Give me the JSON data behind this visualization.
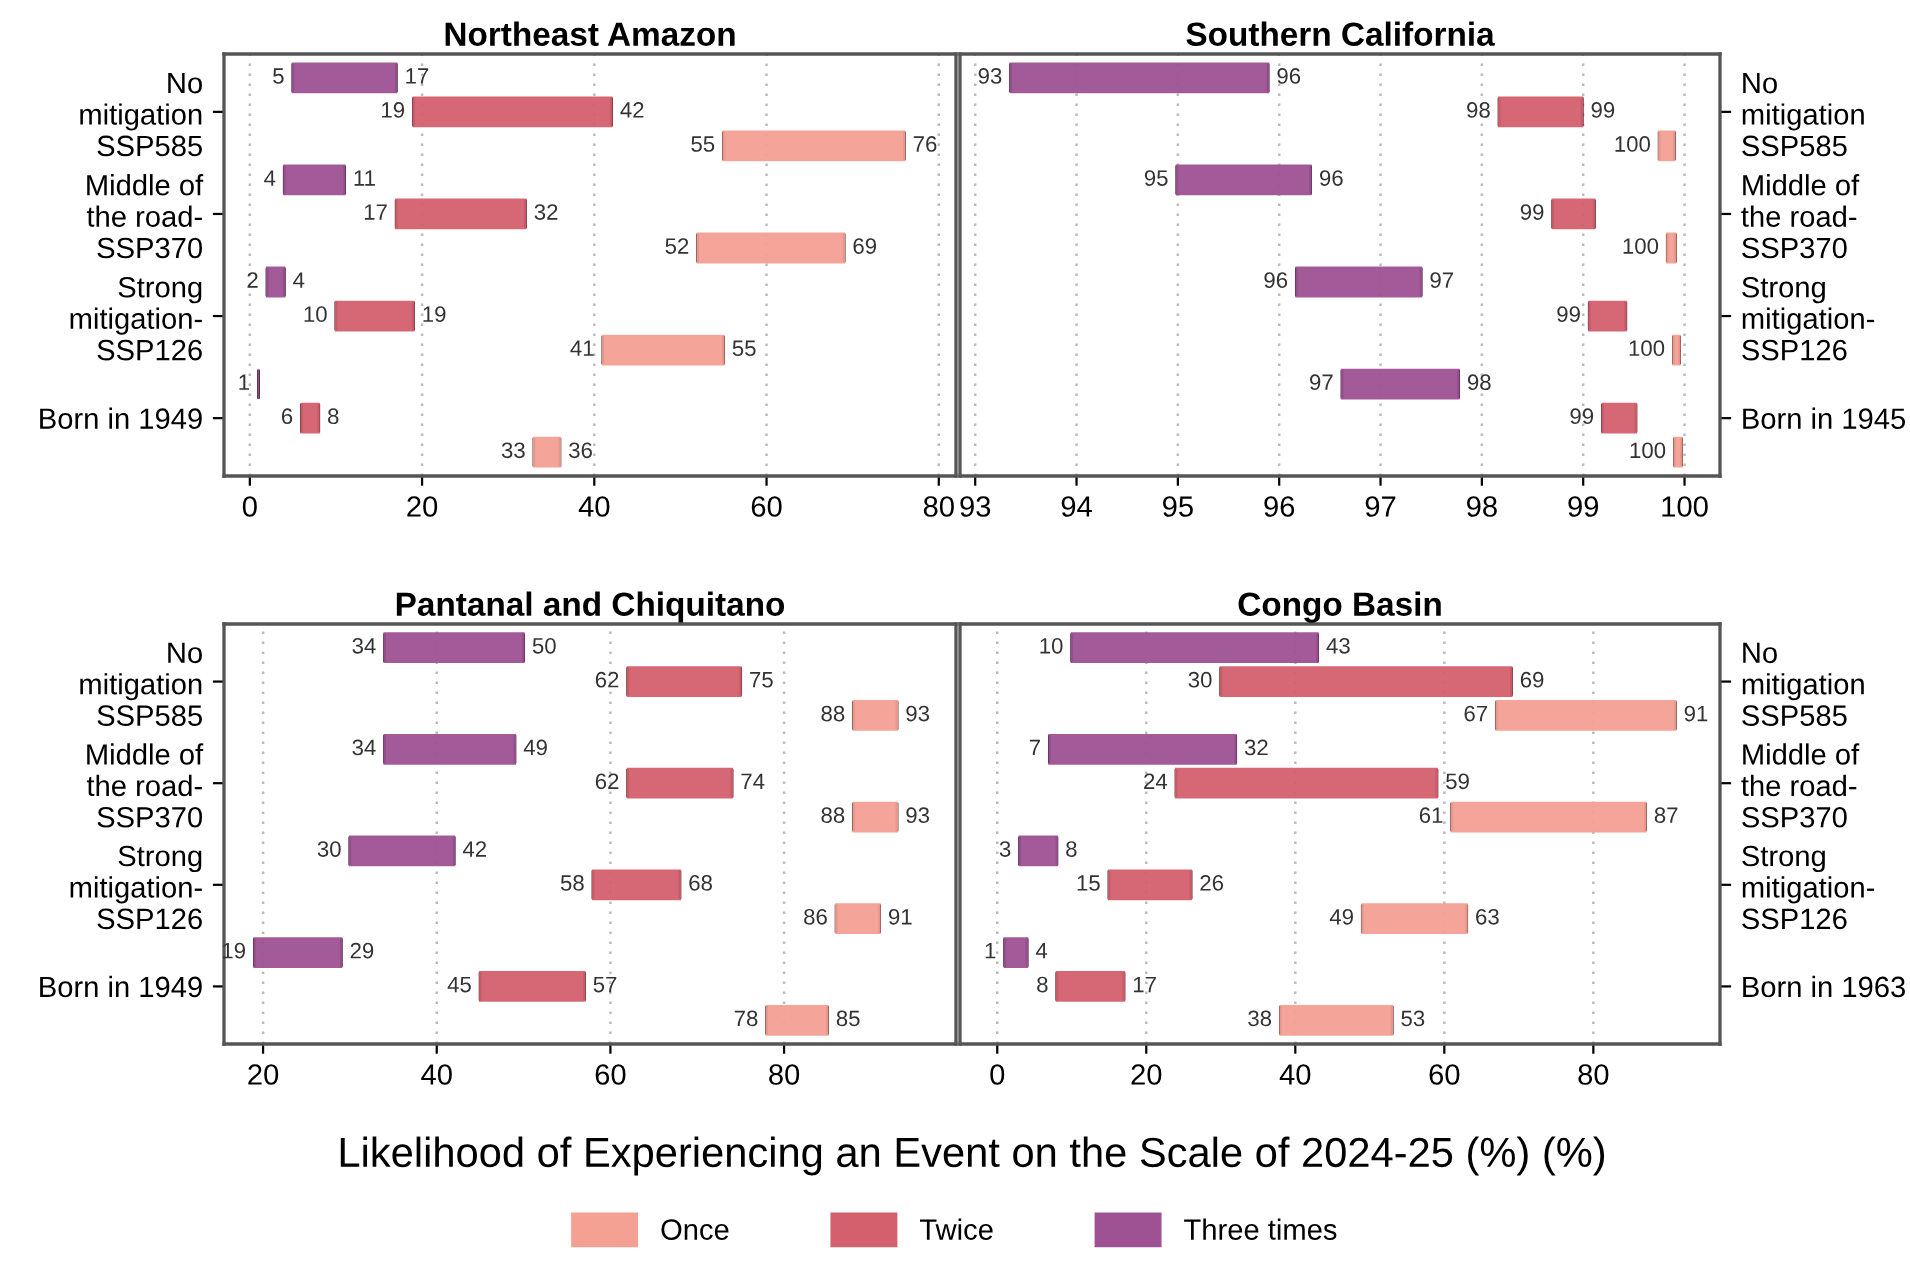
{
  "chart_data": [
    {
      "type": "bar",
      "orientation": "horizontal",
      "title": "Northeast Amazon",
      "xlabel": "Likelihood of Experiencing an Event on the Scale of 2024-25 (%) (%)",
      "legend": "bottom",
      "grid": "x",
      "xlim": [
        -3,
        82
      ],
      "xticks": [
        0,
        20,
        40,
        60,
        80
      ],
      "categories": [
        null,
        "No\nmitigation\nSSP585",
        null,
        null,
        "Middle of\nthe road-\nSSP370",
        null,
        null,
        "Strong\nmitigation-\nSSP126",
        null,
        null,
        "Born in 1949",
        null
      ],
      "series": [
        {
          "name": "Once",
          "color": "#f4a093",
          "base": [
            null,
            null,
            55,
            null,
            null,
            52,
            null,
            null,
            41,
            null,
            null,
            33
          ],
          "values": [
            null,
            null,
            21,
            null,
            null,
            17,
            null,
            null,
            14,
            null,
            null,
            3
          ],
          "value_labels": [
            null,
            null,
            [
              "55",
              "76"
            ],
            null,
            null,
            [
              "52",
              "69"
            ],
            null,
            null,
            [
              "41",
              "55"
            ],
            null,
            null,
            [
              "33",
              "36"
            ]
          ]
        },
        {
          "name": "Twice",
          "color": "#d4606e",
          "base": [
            null,
            19,
            null,
            null,
            17,
            null,
            null,
            10,
            null,
            null,
            6,
            null
          ],
          "values": [
            null,
            23,
            null,
            null,
            15,
            null,
            null,
            9,
            null,
            null,
            2,
            null
          ],
          "value_labels": [
            null,
            [
              "19",
              "42"
            ],
            null,
            null,
            [
              "17",
              "32"
            ],
            null,
            null,
            [
              "10",
              "19"
            ],
            null,
            null,
            [
              "6",
              "8"
            ],
            null
          ]
        },
        {
          "name": "Three times",
          "color": "#9e5294",
          "base": [
            5,
            null,
            null,
            4,
            null,
            null,
            2,
            null,
            null,
            1,
            null,
            null
          ],
          "values": [
            12,
            null,
            null,
            7,
            null,
            null,
            2,
            null,
            null,
            0,
            null,
            null
          ],
          "value_labels": [
            [
              "5",
              "17"
            ],
            null,
            null,
            [
              "4",
              "11"
            ],
            null,
            null,
            [
              "2",
              "4"
            ],
            null,
            null,
            [
              "1",
              null
            ],
            null,
            null
          ]
        }
      ]
    },
    {
      "type": "bar",
      "orientation": "horizontal",
      "title": "Southern California",
      "grid": "x",
      "xlim": [
        92.85,
        100.35
      ],
      "xticks": [
        93,
        94,
        95,
        96,
        97,
        98,
        99,
        100
      ],
      "categories": [
        null,
        "No\nmitigation\nSSP585",
        null,
        null,
        "Middle of\nthe road-\nSSP370",
        null,
        null,
        "Strong\nmitigation-\nSSP126",
        null,
        null,
        "Born in 1945",
        null
      ],
      "series": [
        {
          "name": "Once",
          "color": "#f4a093",
          "base": [
            null,
            null,
            99.75,
            null,
            null,
            99.83,
            null,
            null,
            99.89,
            null,
            null,
            99.9
          ],
          "values": [
            null,
            null,
            0.15,
            null,
            null,
            0.08,
            null,
            null,
            0.06,
            null,
            null,
            0.07
          ],
          "value_labels": [
            null,
            null,
            [
              "100",
              null
            ],
            null,
            null,
            [
              "100",
              null
            ],
            null,
            null,
            [
              "100",
              null
            ],
            null,
            null,
            [
              "100",
              null
            ]
          ]
        },
        {
          "name": "Twice",
          "color": "#d4606e",
          "base": [
            null,
            98.17,
            null,
            null,
            98.7,
            null,
            null,
            99.06,
            null,
            null,
            99.19,
            null
          ],
          "values": [
            null,
            0.82,
            null,
            null,
            0.41,
            null,
            null,
            0.36,
            null,
            null,
            0.33,
            null
          ],
          "value_labels": [
            null,
            [
              "98",
              "99"
            ],
            null,
            null,
            [
              "99",
              null
            ],
            null,
            null,
            [
              "99",
              null
            ],
            null,
            null,
            [
              "99",
              null
            ],
            null
          ]
        },
        {
          "name": "Three times",
          "color": "#9e5294",
          "base": [
            93.35,
            null,
            null,
            94.99,
            null,
            null,
            96.17,
            null,
            null,
            96.62,
            null,
            null
          ],
          "values": [
            2.54,
            null,
            null,
            1.32,
            null,
            null,
            1.23,
            null,
            null,
            1.15,
            null,
            null
          ],
          "value_labels": [
            [
              "93",
              "96"
            ],
            null,
            null,
            [
              "95",
              "96"
            ],
            null,
            null,
            [
              "96",
              "97"
            ],
            null,
            null,
            [
              "97",
              "98"
            ],
            null,
            null
          ]
        }
      ]
    },
    {
      "type": "bar",
      "orientation": "horizontal",
      "title": "Pantanal and Chiquitano",
      "grid": "x",
      "xlim": [
        15.5,
        99.8
      ],
      "xticks": [
        20,
        40,
        60,
        80
      ],
      "categories": [
        null,
        "No\nmitigation\nSSP585",
        null,
        null,
        "Middle of\nthe road-\nSSP370",
        null,
        null,
        "Strong\nmitigation-\nSSP126",
        null,
        null,
        "Born in 1949",
        null
      ],
      "series": [
        {
          "name": "Once",
          "color": "#f4a093",
          "base": [
            null,
            null,
            88,
            null,
            null,
            88,
            null,
            null,
            86,
            null,
            null,
            78
          ],
          "values": [
            null,
            null,
            5,
            null,
            null,
            5,
            null,
            null,
            5,
            null,
            null,
            7
          ],
          "value_labels": [
            null,
            null,
            [
              "88",
              "93"
            ],
            null,
            null,
            [
              "88",
              "93"
            ],
            null,
            null,
            [
              "86",
              "91"
            ],
            null,
            null,
            [
              "78",
              "85"
            ]
          ]
        },
        {
          "name": "Twice",
          "color": "#d4606e",
          "base": [
            null,
            62,
            null,
            null,
            62,
            null,
            null,
            58,
            null,
            null,
            45,
            null
          ],
          "values": [
            null,
            13,
            null,
            null,
            12,
            null,
            null,
            10,
            null,
            null,
            12,
            null
          ],
          "value_labels": [
            null,
            [
              "62",
              "75"
            ],
            null,
            null,
            [
              "62",
              "74"
            ],
            null,
            null,
            [
              "58",
              "68"
            ],
            null,
            null,
            [
              "45",
              "57"
            ],
            null
          ]
        },
        {
          "name": "Three times",
          "color": "#9e5294",
          "base": [
            34,
            null,
            null,
            34,
            null,
            null,
            30,
            null,
            null,
            19,
            null,
            null
          ],
          "values": [
            16,
            null,
            null,
            15,
            null,
            null,
            12,
            null,
            null,
            10,
            null,
            null
          ],
          "value_labels": [
            [
              "34",
              "50"
            ],
            null,
            null,
            [
              "34",
              "49"
            ],
            null,
            null,
            [
              "30",
              "42"
            ],
            null,
            null,
            [
              "19",
              "29"
            ],
            null,
            null
          ]
        }
      ]
    },
    {
      "type": "bar",
      "orientation": "horizontal",
      "title": "Congo Basin",
      "grid": "x",
      "xlim": [
        -5,
        97
      ],
      "xticks": [
        0,
        20,
        40,
        60,
        80
      ],
      "categories": [
        null,
        "No\nmitigation\nSSP585",
        null,
        null,
        "Middle of\nthe road-\nSSP370",
        null,
        null,
        "Strong\nmitigation-\nSSP126",
        null,
        null,
        "Born in 1963",
        null
      ],
      "series": [
        {
          "name": "Once",
          "color": "#f4a093",
          "base": [
            null,
            null,
            67,
            null,
            null,
            61,
            null,
            null,
            49,
            null,
            null,
            38
          ],
          "values": [
            null,
            null,
            24,
            null,
            null,
            26,
            null,
            null,
            14,
            null,
            null,
            15
          ],
          "value_labels": [
            null,
            null,
            [
              "67",
              "91"
            ],
            null,
            null,
            [
              "61",
              "87"
            ],
            null,
            null,
            [
              "49",
              "63"
            ],
            null,
            null,
            [
              "38",
              "53"
            ]
          ]
        },
        {
          "name": "Twice",
          "color": "#d4606e",
          "base": [
            null,
            30,
            null,
            null,
            24,
            null,
            null,
            15,
            null,
            null,
            8,
            null
          ],
          "values": [
            null,
            39,
            null,
            null,
            35,
            null,
            null,
            11,
            null,
            null,
            9,
            null
          ],
          "value_labels": [
            null,
            [
              "30",
              "69"
            ],
            null,
            null,
            [
              "24",
              "59"
            ],
            null,
            null,
            [
              "15",
              "26"
            ],
            null,
            null,
            [
              "8",
              "17"
            ],
            null
          ]
        },
        {
          "name": "Three times",
          "color": "#9e5294",
          "base": [
            10,
            null,
            null,
            7,
            null,
            null,
            3,
            null,
            null,
            1,
            null,
            null
          ],
          "values": [
            33,
            null,
            null,
            25,
            null,
            null,
            5,
            null,
            null,
            3,
            null,
            null
          ],
          "value_labels": [
            [
              "10",
              "43"
            ],
            null,
            null,
            [
              "7",
              "32"
            ],
            null,
            null,
            [
              "3",
              "8"
            ],
            null,
            null,
            [
              "1",
              "4"
            ],
            null,
            null
          ]
        }
      ]
    }
  ]
}
